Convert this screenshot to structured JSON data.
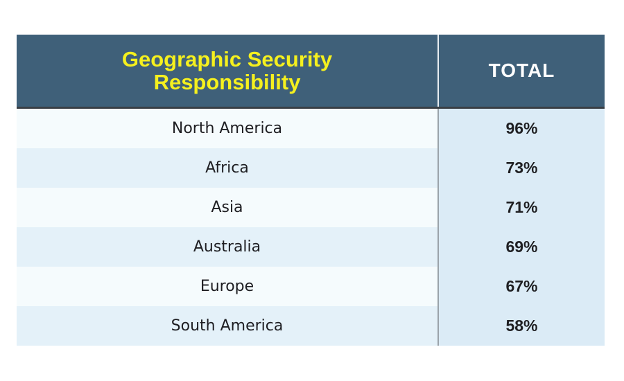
{
  "chart_data": {
    "type": "table",
    "title": "",
    "columns": [
      "Geographic Security Responsibility",
      "TOTAL"
    ],
    "header": {
      "col1_line1": "Geographic Security",
      "col1_line2": "Responsibility",
      "col2": "TOTAL"
    },
    "rows": [
      {
        "region": "North America",
        "total": "96%"
      },
      {
        "region": "Africa",
        "total": "73%"
      },
      {
        "region": "Asia",
        "total": "71%"
      },
      {
        "region": "Australia",
        "total": "69%"
      },
      {
        "region": "Europe",
        "total": "67%"
      },
      {
        "region": "South America",
        "total": "58%"
      }
    ],
    "colors": {
      "header_bg": "#3f6079",
      "header_title": "#f5f01e",
      "header_total": "#ffffff",
      "total_col_bg": "#dbebf6"
    }
  }
}
